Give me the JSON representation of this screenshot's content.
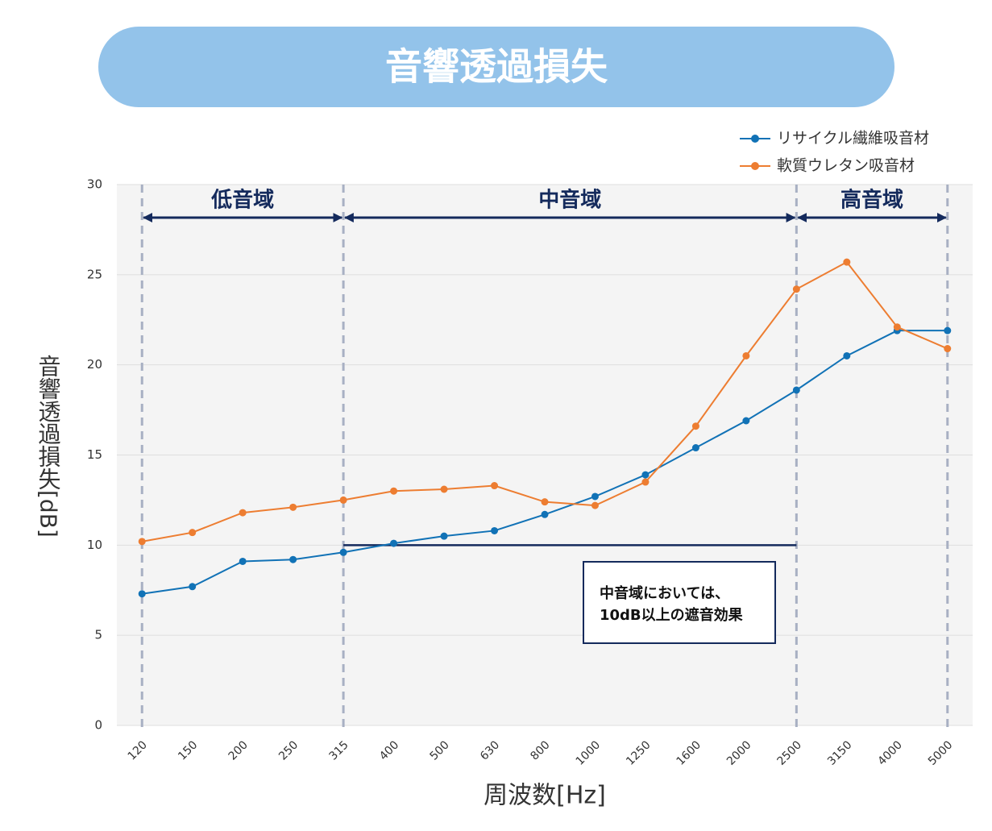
{
  "chart_data": {
    "type": "line",
    "title": "音響透過損失",
    "xlabel": "周波数[Hz]",
    "ylabel": "音響透過損失[dB]",
    "categories": [
      "120",
      "150",
      "200",
      "250",
      "315",
      "400",
      "500",
      "630",
      "800",
      "1000",
      "1250",
      "1600",
      "2000",
      "2500",
      "3150",
      "4000",
      "5000"
    ],
    "series": [
      {
        "name": "リサイクル繊維吸音材",
        "color": "#1172b6",
        "values": [
          7.3,
          7.7,
          9.1,
          9.2,
          9.6,
          10.1,
          10.5,
          10.8,
          11.7,
          12.7,
          13.9,
          15.4,
          16.9,
          18.6,
          20.5,
          21.9,
          21.9
        ]
      },
      {
        "name": "軟質ウレタン吸音材",
        "color": "#ed7d31",
        "values": [
          10.2,
          10.7,
          11.8,
          12.1,
          12.5,
          13.0,
          13.1,
          13.3,
          12.4,
          12.2,
          13.5,
          16.6,
          20.5,
          24.2,
          25.7,
          22.1,
          20.9
        ]
      }
    ],
    "ylim": [
      0,
      30
    ],
    "yticks": [
      0,
      5,
      10,
      15,
      20,
      25,
      30
    ],
    "grid": true,
    "legend": "top-right",
    "regions": [
      {
        "label": "低音域",
        "from": "120",
        "to": "315"
      },
      {
        "label": "中音域",
        "from": "315",
        "to": "2500"
      },
      {
        "label": "高音域",
        "from": "2500",
        "to": "5000"
      }
    ],
    "reference_line": {
      "value": 10,
      "from": "315",
      "to": "2500"
    },
    "annotation": [
      "中音域においては、",
      "10dB以上の遮音効果"
    ]
  }
}
